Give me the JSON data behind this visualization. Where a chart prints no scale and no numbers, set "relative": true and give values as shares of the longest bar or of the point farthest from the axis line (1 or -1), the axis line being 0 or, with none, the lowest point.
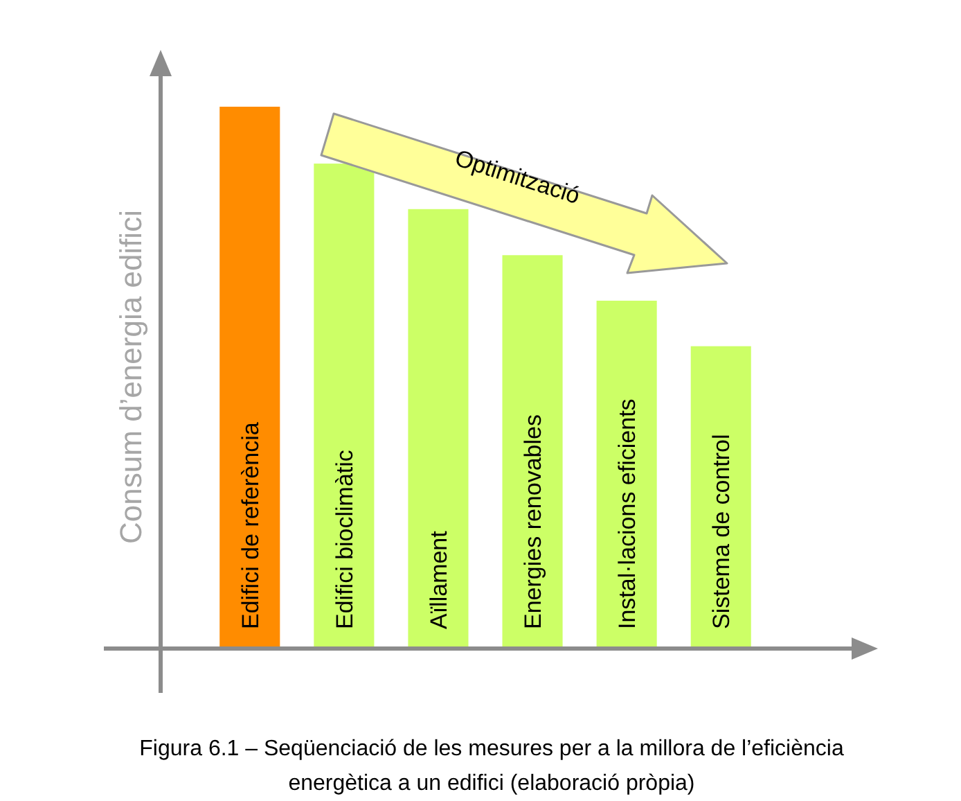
{
  "chart_data": {
    "type": "bar",
    "relative": true,
    "ylabel": "Consum d’energia edifici",
    "categories": [
      "Edifici de referència",
      "Edifici bioclimàtic",
      "Aïllament",
      "Energies renovables",
      "Instal·lacions eficients",
      "Sistema de control"
    ],
    "values": [
      1,
      0.895,
      0.811,
      0.726,
      0.642,
      0.558
    ],
    "colors": [
      "#ff8c00",
      "#ccff66",
      "#ccff66",
      "#ccff66",
      "#ccff66",
      "#ccff66"
    ],
    "annotations": [
      "Optimització",
      "Figura 6.1 – Seqüenciació de les mesures per a la millora de l’eficiència energètica a un edifici (elaboració pròpia)"
    ]
  }
}
